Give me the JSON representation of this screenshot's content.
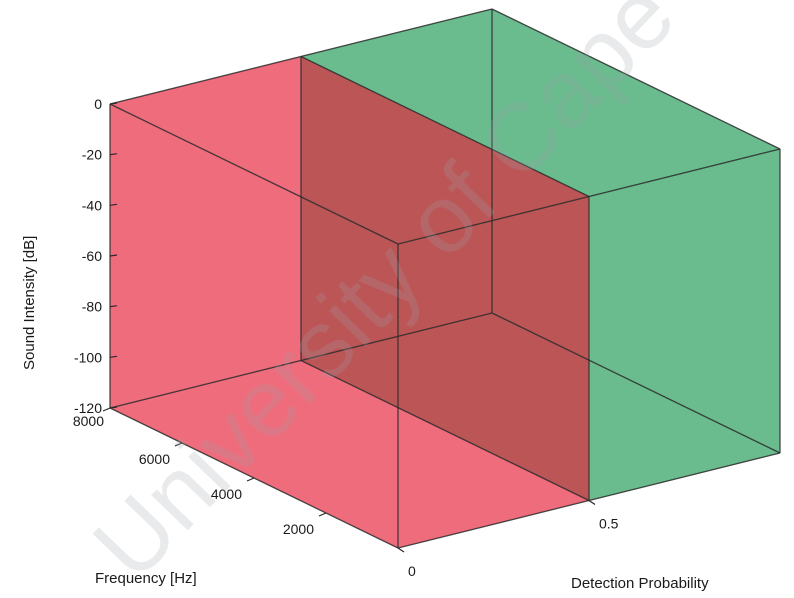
{
  "chart_data": {
    "type": "3d-box",
    "xlabel": "Frequency [Hz]",
    "ylabel": "Detection Probability",
    "zlabel": "Sound Intensity [dB]",
    "xlim": [
      0,
      8000
    ],
    "ylim": [
      0,
      1
    ],
    "zlim": [
      -120,
      0
    ],
    "x_ticks": [
      "2000",
      "4000",
      "6000",
      "8000"
    ],
    "x_tick_values": [
      2000,
      4000,
      6000,
      8000
    ],
    "y_ticks": [
      "0",
      "0.5"
    ],
    "y_tick_values": [
      0,
      0.5
    ],
    "z_ticks": [
      "0",
      "-20",
      "-40",
      "-60",
      "-80",
      "-100",
      "-120"
    ],
    "z_tick_values": [
      0,
      -20,
      -40,
      -60,
      -80,
      -100,
      -120
    ],
    "regions": [
      {
        "y_range": [
          0,
          0.5
        ],
        "x_range": [
          0,
          8000
        ],
        "z_range": [
          -120,
          0
        ],
        "color": "#e8213a"
      },
      {
        "y_range": [
          0.5,
          1
        ],
        "x_range": [
          0,
          8000
        ],
        "z_range": [
          -120,
          0
        ],
        "color": "#1f9a55"
      }
    ],
    "grid": false
  },
  "watermark": {
    "text": "University of Cape Town"
  }
}
